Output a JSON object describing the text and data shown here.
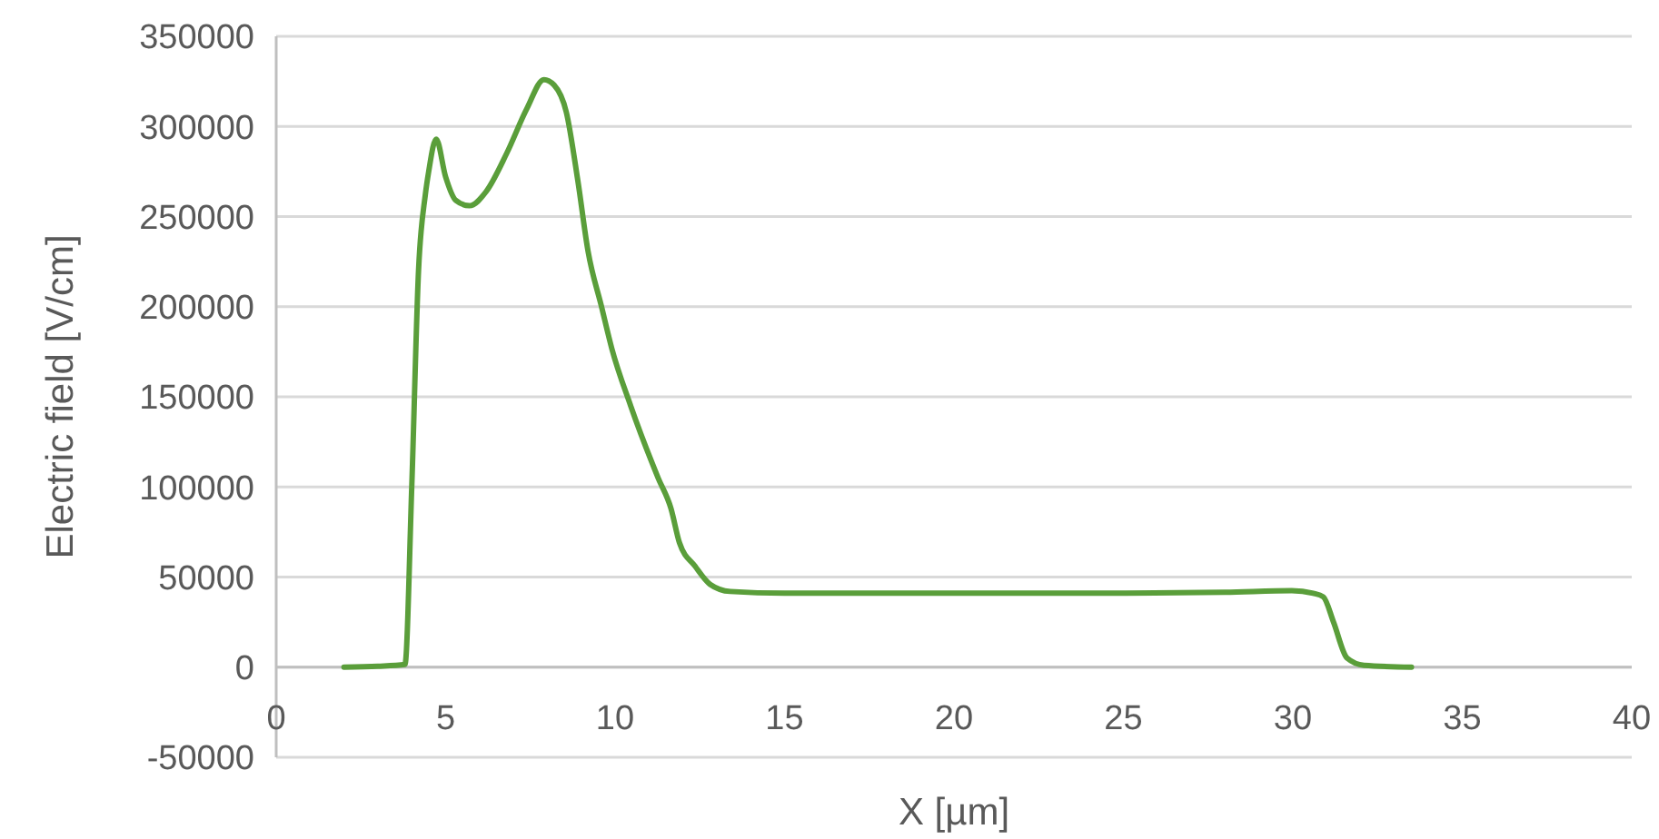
{
  "chart_data": {
    "type": "line",
    "xlabel": "X [µm]",
    "ylabel": "Electric field [V/cm]",
    "xlim": [
      0,
      40
    ],
    "xticks": [
      0,
      5,
      10,
      15,
      20,
      25,
      30,
      35,
      40
    ],
    "ylim": [
      -50000,
      350000
    ],
    "yticks": [
      -50000,
      0,
      50000,
      100000,
      150000,
      200000,
      250000,
      300000,
      350000
    ],
    "grid": "y",
    "marker": "none",
    "line_style": "solid",
    "series": [
      {
        "color": "#5a9e3a",
        "x": [
          2,
          3,
          3.8,
          4.0,
          4.2,
          4.4,
          4.5,
          4.72,
          5.0,
          5.3,
          5.7,
          6.2,
          6.8,
          7.4,
          7.9,
          8.2,
          8.56,
          8.9,
          9.2,
          9.6,
          9.9,
          10.46,
          11.27,
          11.65,
          11.9,
          12.36,
          12.8,
          13.4,
          15,
          20,
          25,
          28,
          29.97,
          30.6,
          30.9,
          31.2,
          31.6,
          32.1,
          33.5
        ],
        "values": [
          0,
          500,
          1500,
          100000,
          220000,
          262000,
          275000,
          293000,
          272000,
          259000,
          256000,
          264000,
          285000,
          310000,
          326000,
          323000,
          308000,
          270000,
          231000,
          200000,
          177000,
          145000,
          105000,
          88000,
          69000,
          56000,
          46000,
          42000,
          41000,
          41000,
          41000,
          41500,
          42500,
          41000,
          39000,
          25000,
          5000,
          1000,
          0
        ]
      }
    ]
  }
}
